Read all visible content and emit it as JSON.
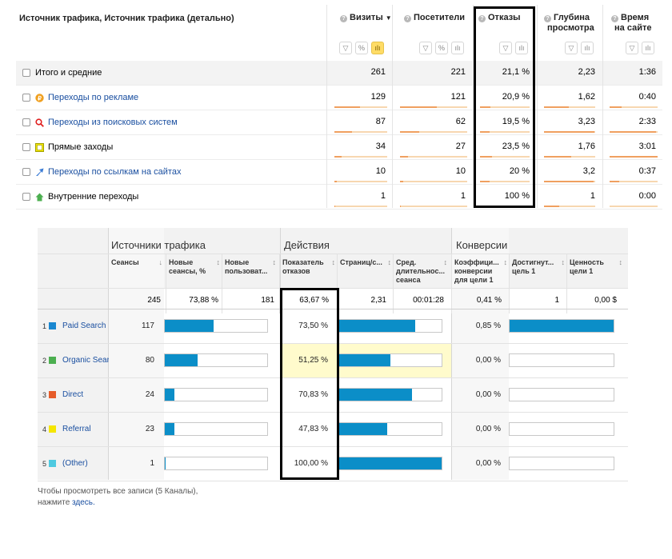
{
  "ym": {
    "dimension_title": "Источник трафика, Источник трафика (детально)",
    "columns": [
      {
        "key": "visits",
        "line1": "Визиты",
        "line2": "",
        "sorted": true,
        "sort_icon": "▼",
        "tools": [
          "filter",
          "%",
          "bars"
        ]
      },
      {
        "key": "visitors",
        "line1": "Посетители",
        "line2": "",
        "sorted": false,
        "tools": [
          "filter",
          "%",
          "bars"
        ]
      },
      {
        "key": "bounce",
        "line1": "Отказы",
        "line2": "",
        "sorted": false,
        "tools": [
          "filter",
          "bars"
        ]
      },
      {
        "key": "depth",
        "line1": "Глубина",
        "line2": "просмотра",
        "sorted": false,
        "tools": [
          "filter",
          "bars"
        ]
      },
      {
        "key": "time",
        "line1": "Время",
        "line2": "на сайте",
        "sorted": false,
        "tools": [
          "filter",
          "bars"
        ]
      }
    ],
    "rows": [
      {
        "label": "Итого и средние",
        "link": false,
        "icon": "",
        "values": [
          "261",
          "221",
          "21,1 %",
          "2,23",
          "1:36"
        ],
        "bars": []
      },
      {
        "label": "Переходы по рекламе",
        "link": true,
        "icon": "ads-icon",
        "values": [
          "129",
          "121",
          "20,9 %",
          "1,62",
          "0:40"
        ],
        "bars": [
          0.49,
          0.55,
          0.21,
          0.49,
          0.25
        ]
      },
      {
        "label": "Переходы из поисковых систем",
        "link": true,
        "icon": "search-engine-icon",
        "values": [
          "87",
          "62",
          "19,5 %",
          "3,23",
          "2:33"
        ],
        "bars": [
          0.33,
          0.28,
          0.2,
          0.98,
          0.96
        ]
      },
      {
        "label": "Прямые заходы",
        "link": false,
        "icon": "direct-icon",
        "values": [
          "34",
          "27",
          "23,5 %",
          "1,76",
          "3:01"
        ],
        "bars": [
          0.13,
          0.12,
          0.24,
          0.53,
          1.0
        ]
      },
      {
        "label": "Переходы по ссылкам на сайтах",
        "link": true,
        "icon": "link-icon",
        "values": [
          "10",
          "10",
          "20 %",
          "3,2",
          "0:37"
        ],
        "bars": [
          0.04,
          0.05,
          0.2,
          0.97,
          0.2
        ]
      },
      {
        "label": "Внутренние переходы",
        "link": false,
        "icon": "internal-icon",
        "values": [
          "1",
          "1",
          "100 %",
          "1",
          "0:00"
        ],
        "bars": [
          0.01,
          0.01,
          1.0,
          0.3,
          0.0
        ]
      }
    ]
  },
  "ga": {
    "groups": [
      "Источники трафика",
      "Действия",
      "Конверсии"
    ],
    "columns": [
      {
        "line1": "Сеансы",
        "line2": "",
        "line3": "",
        "sort": "↓"
      },
      {
        "line1": "Новые",
        "line2": "сеансы, %",
        "line3": "",
        "sort": "↕"
      },
      {
        "line1": "Новые",
        "line2": "пользоват...",
        "line3": "",
        "sort": "↕"
      },
      {
        "line1": "Показатель",
        "line2": "отказов",
        "line3": "",
        "sort": "↕"
      },
      {
        "line1": "Страниц/с...",
        "line2": "",
        "line3": "",
        "sort": "↕"
      },
      {
        "line1": "Сред.",
        "line2": "длительнос...",
        "line3": "сеанса",
        "sort": "↕"
      },
      {
        "line1": "Коэффици...",
        "line2": "конверсии",
        "line3": "для цели 1",
        "sort": "↕"
      },
      {
        "line1": "Достигнут...",
        "line2": "цель 1",
        "line3": "",
        "sort": "↕"
      },
      {
        "line1": "Ценность",
        "line2": "цели 1",
        "line3": "",
        "sort": "↕"
      }
    ],
    "totals": [
      "245",
      "73,88 %",
      "181",
      "63,67 %",
      "2,31",
      "00:01:28",
      "0,41 %",
      "1",
      "0,00 $"
    ],
    "rows": [
      {
        "num": "1",
        "source": "Paid Search",
        "color": "#1a87d0",
        "sessions": "117",
        "new_bar": 0.48,
        "bounce": "73,50 %",
        "pages_bar": 0.74,
        "conv": "0,85 %",
        "conv_bar": 1.0
      },
      {
        "num": "2",
        "source": "Organic Search",
        "color": "#4caf50",
        "sessions": "80",
        "new_bar": 0.32,
        "bounce": "51,25 %",
        "pages_bar": 0.5,
        "conv": "0,00 %",
        "conv_bar": 0.0
      },
      {
        "num": "3",
        "source": "Direct",
        "color": "#e65c2a",
        "sessions": "24",
        "new_bar": 0.09,
        "bounce": "70,83 %",
        "pages_bar": 0.71,
        "conv": "0,00 %",
        "conv_bar": 0.0
      },
      {
        "num": "4",
        "source": "Referral",
        "color": "#f5e600",
        "sessions": "23",
        "new_bar": 0.09,
        "bounce": "47,83 %",
        "pages_bar": 0.47,
        "conv": "0,00 %",
        "conv_bar": 0.0
      },
      {
        "num": "5",
        "source": "(Other)",
        "color": "#4ec9e0",
        "sessions": "1",
        "new_bar": 0.01,
        "bounce": "100,00 %",
        "pages_bar": 1.0,
        "conv": "0,00 %",
        "conv_bar": 0.0
      }
    ],
    "footer_text": "Чтобы просмотреть все записи (5 Каналы),",
    "footer_text2": "нажмите",
    "footer_link": "здесь."
  }
}
